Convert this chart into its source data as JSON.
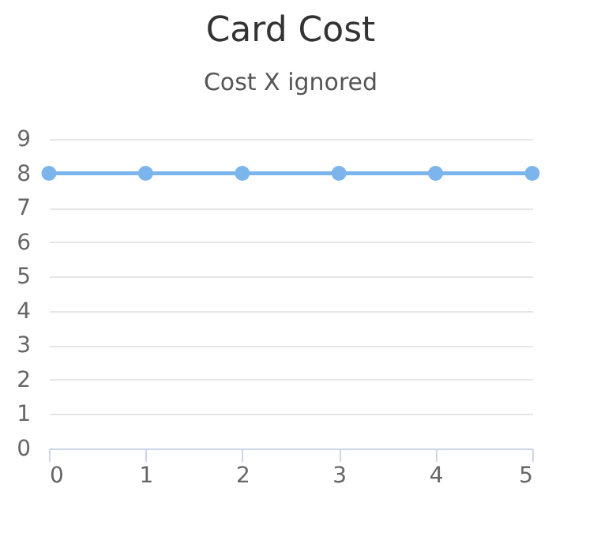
{
  "chart_data": {
    "type": "line",
    "title": "Card Cost",
    "subtitle": "Cost X ignored",
    "x": [
      0,
      1,
      2,
      3,
      4,
      5
    ],
    "series": [
      {
        "color": "#7cb5ec",
        "values": [
          8,
          8,
          8,
          8,
          8,
          8
        ]
      }
    ],
    "xlim": [
      0,
      5
    ],
    "xticks": [
      0,
      1,
      2,
      3,
      4,
      5
    ],
    "ylim": [
      0,
      9
    ],
    "yticks": [
      0,
      1,
      2,
      3,
      4,
      5,
      6,
      7,
      8,
      9
    ],
    "grid": "y",
    "marker": "circle",
    "line_style": "solid"
  }
}
